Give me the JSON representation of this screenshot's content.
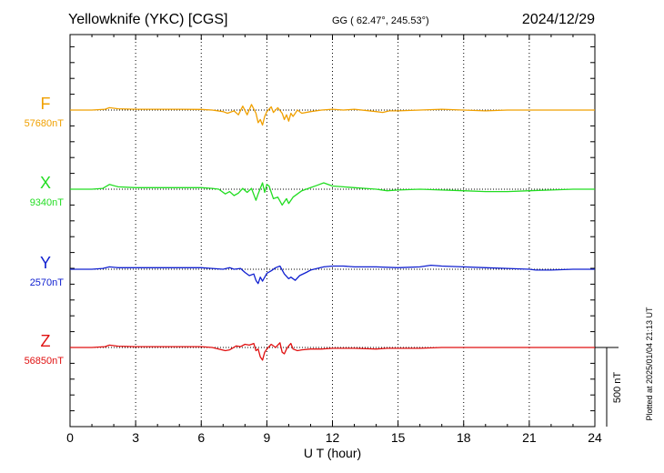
{
  "chart_data": {
    "type": "line",
    "title": "Yellowknife (YKC)  [CGS]",
    "coords": "GG ( 62.47°, 245.53°)",
    "date": "2024/12/29",
    "xlabel": "U T (hour)",
    "x_ticks": [
      0,
      3,
      6,
      9,
      12,
      15,
      18,
      21,
      24
    ],
    "xlim": [
      0,
      24
    ],
    "grid": "vertical dotted lines every 3 hours",
    "scale_bar_label": "500 nT",
    "scale_bar_nT": 500,
    "footer": "Plotted at 2025/01/04 21:13 UT",
    "series": [
      {
        "name": "F",
        "baseline_label": "57680nT",
        "baseline_nT": 57680,
        "color": "#f0a000",
        "points": [
          [
            0,
            0
          ],
          [
            1,
            0
          ],
          [
            1.6,
            5
          ],
          [
            1.8,
            15
          ],
          [
            2.2,
            8
          ],
          [
            3,
            5
          ],
          [
            4,
            5
          ],
          [
            5,
            5
          ],
          [
            6,
            4
          ],
          [
            6.5,
            0
          ],
          [
            7,
            -10
          ],
          [
            7.2,
            -20
          ],
          [
            7.5,
            -5
          ],
          [
            7.7,
            -30
          ],
          [
            7.9,
            25
          ],
          [
            8.1,
            -30
          ],
          [
            8.3,
            35
          ],
          [
            8.5,
            -20
          ],
          [
            8.6,
            -80
          ],
          [
            8.7,
            -60
          ],
          [
            8.8,
            -95
          ],
          [
            8.9,
            -40
          ],
          [
            9,
            -10
          ],
          [
            9.2,
            20
          ],
          [
            9.3,
            -15
          ],
          [
            9.5,
            15
          ],
          [
            9.7,
            -20
          ],
          [
            9.8,
            -60
          ],
          [
            9.9,
            -30
          ],
          [
            10,
            -70
          ],
          [
            10.1,
            -20
          ],
          [
            10.2,
            -40
          ],
          [
            10.4,
            0
          ],
          [
            10.6,
            -20
          ],
          [
            11,
            -10
          ],
          [
            11.5,
            0
          ],
          [
            12,
            5
          ],
          [
            12.5,
            0
          ],
          [
            13,
            5
          ],
          [
            14,
            -10
          ],
          [
            14.3,
            -15
          ],
          [
            14.6,
            -5
          ],
          [
            15,
            -5
          ],
          [
            16,
            0
          ],
          [
            17,
            5
          ],
          [
            18,
            0
          ],
          [
            19,
            -5
          ],
          [
            20,
            0
          ],
          [
            21,
            0
          ],
          [
            22,
            0
          ],
          [
            23,
            0
          ],
          [
            24,
            0
          ]
        ]
      },
      {
        "name": "X",
        "baseline_label": "9340nT",
        "baseline_nT": 9340,
        "color": "#22dd22",
        "points": [
          [
            0,
            0
          ],
          [
            1,
            0
          ],
          [
            1.5,
            5
          ],
          [
            1.8,
            30
          ],
          [
            2.2,
            15
          ],
          [
            3,
            10
          ],
          [
            4,
            10
          ],
          [
            5,
            10
          ],
          [
            6,
            10
          ],
          [
            6.5,
            5
          ],
          [
            6.8,
            0
          ],
          [
            7.1,
            -30
          ],
          [
            7.3,
            -15
          ],
          [
            7.5,
            -40
          ],
          [
            7.7,
            -25
          ],
          [
            7.9,
            5
          ],
          [
            8.1,
            -20
          ],
          [
            8.3,
            5
          ],
          [
            8.5,
            -70
          ],
          [
            8.6,
            -30
          ],
          [
            8.8,
            40
          ],
          [
            8.9,
            -20
          ],
          [
            9,
            30
          ],
          [
            9.1,
            20
          ],
          [
            9.3,
            -60
          ],
          [
            9.5,
            -50
          ],
          [
            9.7,
            -100
          ],
          [
            9.9,
            -60
          ],
          [
            10,
            -90
          ],
          [
            10.2,
            -50
          ],
          [
            10.4,
            -30
          ],
          [
            10.6,
            -10
          ],
          [
            10.8,
            0
          ],
          [
            11,
            10
          ],
          [
            11.3,
            25
          ],
          [
            11.6,
            40
          ],
          [
            12,
            20
          ],
          [
            12.5,
            15
          ],
          [
            13,
            10
          ],
          [
            13.5,
            5
          ],
          [
            14,
            0
          ],
          [
            14.5,
            -10
          ],
          [
            15,
            -5
          ],
          [
            16,
            0
          ],
          [
            17,
            -5
          ],
          [
            18,
            -10
          ],
          [
            19,
            -15
          ],
          [
            20,
            -15
          ],
          [
            21,
            -10
          ],
          [
            22,
            -5
          ],
          [
            23,
            0
          ],
          [
            24,
            0
          ]
        ]
      },
      {
        "name": "Y",
        "baseline_label": "2570nT",
        "baseline_nT": 2570,
        "color": "#1020d0",
        "points": [
          [
            0,
            0
          ],
          [
            1,
            0
          ],
          [
            1.5,
            5
          ],
          [
            1.8,
            15
          ],
          [
            2.2,
            10
          ],
          [
            3,
            10
          ],
          [
            4,
            10
          ],
          [
            5,
            10
          ],
          [
            6,
            10
          ],
          [
            6.5,
            5
          ],
          [
            7,
            0
          ],
          [
            7.3,
            10
          ],
          [
            7.5,
            0
          ],
          [
            7.8,
            5
          ],
          [
            8,
            -20
          ],
          [
            8.2,
            -40
          ],
          [
            8.4,
            -30
          ],
          [
            8.5,
            -70
          ],
          [
            8.6,
            -90
          ],
          [
            8.7,
            -50
          ],
          [
            8.8,
            -75
          ],
          [
            9,
            -25
          ],
          [
            9.2,
            -10
          ],
          [
            9.4,
            10
          ],
          [
            9.6,
            20
          ],
          [
            9.8,
            -30
          ],
          [
            10,
            -60
          ],
          [
            10.1,
            -50
          ],
          [
            10.3,
            -70
          ],
          [
            10.5,
            -40
          ],
          [
            10.8,
            -20
          ],
          [
            11,
            -5
          ],
          [
            11.3,
            5
          ],
          [
            11.6,
            15
          ],
          [
            12,
            20
          ],
          [
            12.5,
            20
          ],
          [
            13,
            15
          ],
          [
            14,
            15
          ],
          [
            15,
            10
          ],
          [
            16,
            15
          ],
          [
            16.5,
            25
          ],
          [
            17,
            20
          ],
          [
            18,
            15
          ],
          [
            19,
            10
          ],
          [
            20,
            5
          ],
          [
            21,
            0
          ],
          [
            21.3,
            -5
          ],
          [
            22,
            -5
          ],
          [
            23,
            0
          ],
          [
            24,
            0
          ]
        ]
      },
      {
        "name": "Z",
        "baseline_label": "56850nT",
        "baseline_nT": 56850,
        "color": "#e01010",
        "points": [
          [
            0,
            0
          ],
          [
            1,
            0
          ],
          [
            1.6,
            5
          ],
          [
            1.8,
            15
          ],
          [
            2.2,
            8
          ],
          [
            3,
            5
          ],
          [
            4,
            5
          ],
          [
            5,
            5
          ],
          [
            6,
            5
          ],
          [
            6.5,
            0
          ],
          [
            6.8,
            -10
          ],
          [
            7.1,
            -20
          ],
          [
            7.3,
            -15
          ],
          [
            7.6,
            10
          ],
          [
            7.8,
            5
          ],
          [
            8,
            20
          ],
          [
            8.2,
            15
          ],
          [
            8.4,
            25
          ],
          [
            8.5,
            -20
          ],
          [
            8.6,
            -10
          ],
          [
            8.7,
            -60
          ],
          [
            8.8,
            -80
          ],
          [
            8.9,
            -30
          ],
          [
            9,
            -10
          ],
          [
            9.2,
            20
          ],
          [
            9.4,
            0
          ],
          [
            9.6,
            30
          ],
          [
            9.7,
            -30
          ],
          [
            9.8,
            -40
          ],
          [
            9.9,
            -10
          ],
          [
            10,
            10
          ],
          [
            10.1,
            25
          ],
          [
            10.2,
            -10
          ],
          [
            10.4,
            -20
          ],
          [
            10.6,
            -15
          ],
          [
            11,
            -10
          ],
          [
            11.5,
            -10
          ],
          [
            12,
            -5
          ],
          [
            13,
            -5
          ],
          [
            14,
            -10
          ],
          [
            14.5,
            -5
          ],
          [
            15,
            -5
          ],
          [
            16,
            -5
          ],
          [
            17,
            0
          ],
          [
            18,
            0
          ],
          [
            19,
            0
          ],
          [
            20,
            0
          ],
          [
            21,
            0
          ],
          [
            22,
            0
          ],
          [
            23,
            0
          ],
          [
            24,
            0
          ]
        ]
      }
    ]
  }
}
